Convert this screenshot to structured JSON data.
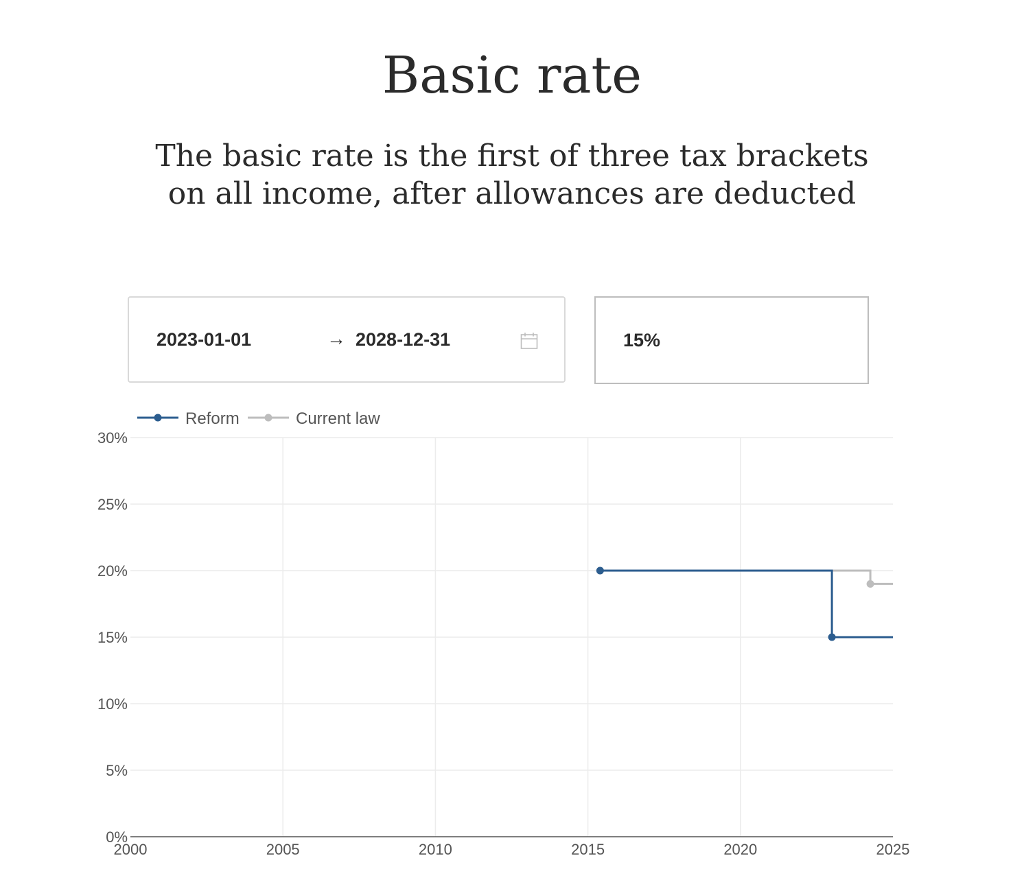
{
  "header": {
    "title": "Basic rate",
    "subtitle": "The basic rate is the first of three tax brackets on all income, after allowances are deducted"
  },
  "controls": {
    "date_start": "2023-01-01",
    "date_arrow": "→",
    "date_end": "2028-12-31",
    "calendar_icon": "calendar-icon",
    "value": "15%"
  },
  "colors": {
    "reform": "#2c5d8f",
    "current_law": "#bdbdbd",
    "grid": "#ececec",
    "axis": "#555555"
  },
  "chart_data": {
    "type": "line",
    "step": true,
    "title": "",
    "xlabel": "",
    "ylabel": "",
    "xlim": [
      2000,
      2025
    ],
    "ylim": [
      0,
      30
    ],
    "x_ticks": [
      2000,
      2005,
      2010,
      2015,
      2020,
      2025
    ],
    "y_ticks": [
      0,
      5,
      10,
      15,
      20,
      25,
      30
    ],
    "x_tick_labels": [
      "2000",
      "2005",
      "2010",
      "2015",
      "2020",
      "2025"
    ],
    "y_tick_labels": [
      "0%",
      "5%",
      "10%",
      "15%",
      "20%",
      "25%",
      "30%"
    ],
    "grid": true,
    "legend": "top-left",
    "series": [
      {
        "name": "Reform",
        "color": "#2c5d8f",
        "points": [
          {
            "x": 2015.4,
            "y": 20
          },
          {
            "x": 2023.0,
            "y": 15
          }
        ]
      },
      {
        "name": "Current law",
        "color": "#bdbdbd",
        "points": [
          {
            "x": 2015.4,
            "y": 20
          },
          {
            "x": 2024.26,
            "y": 19
          }
        ]
      }
    ]
  }
}
